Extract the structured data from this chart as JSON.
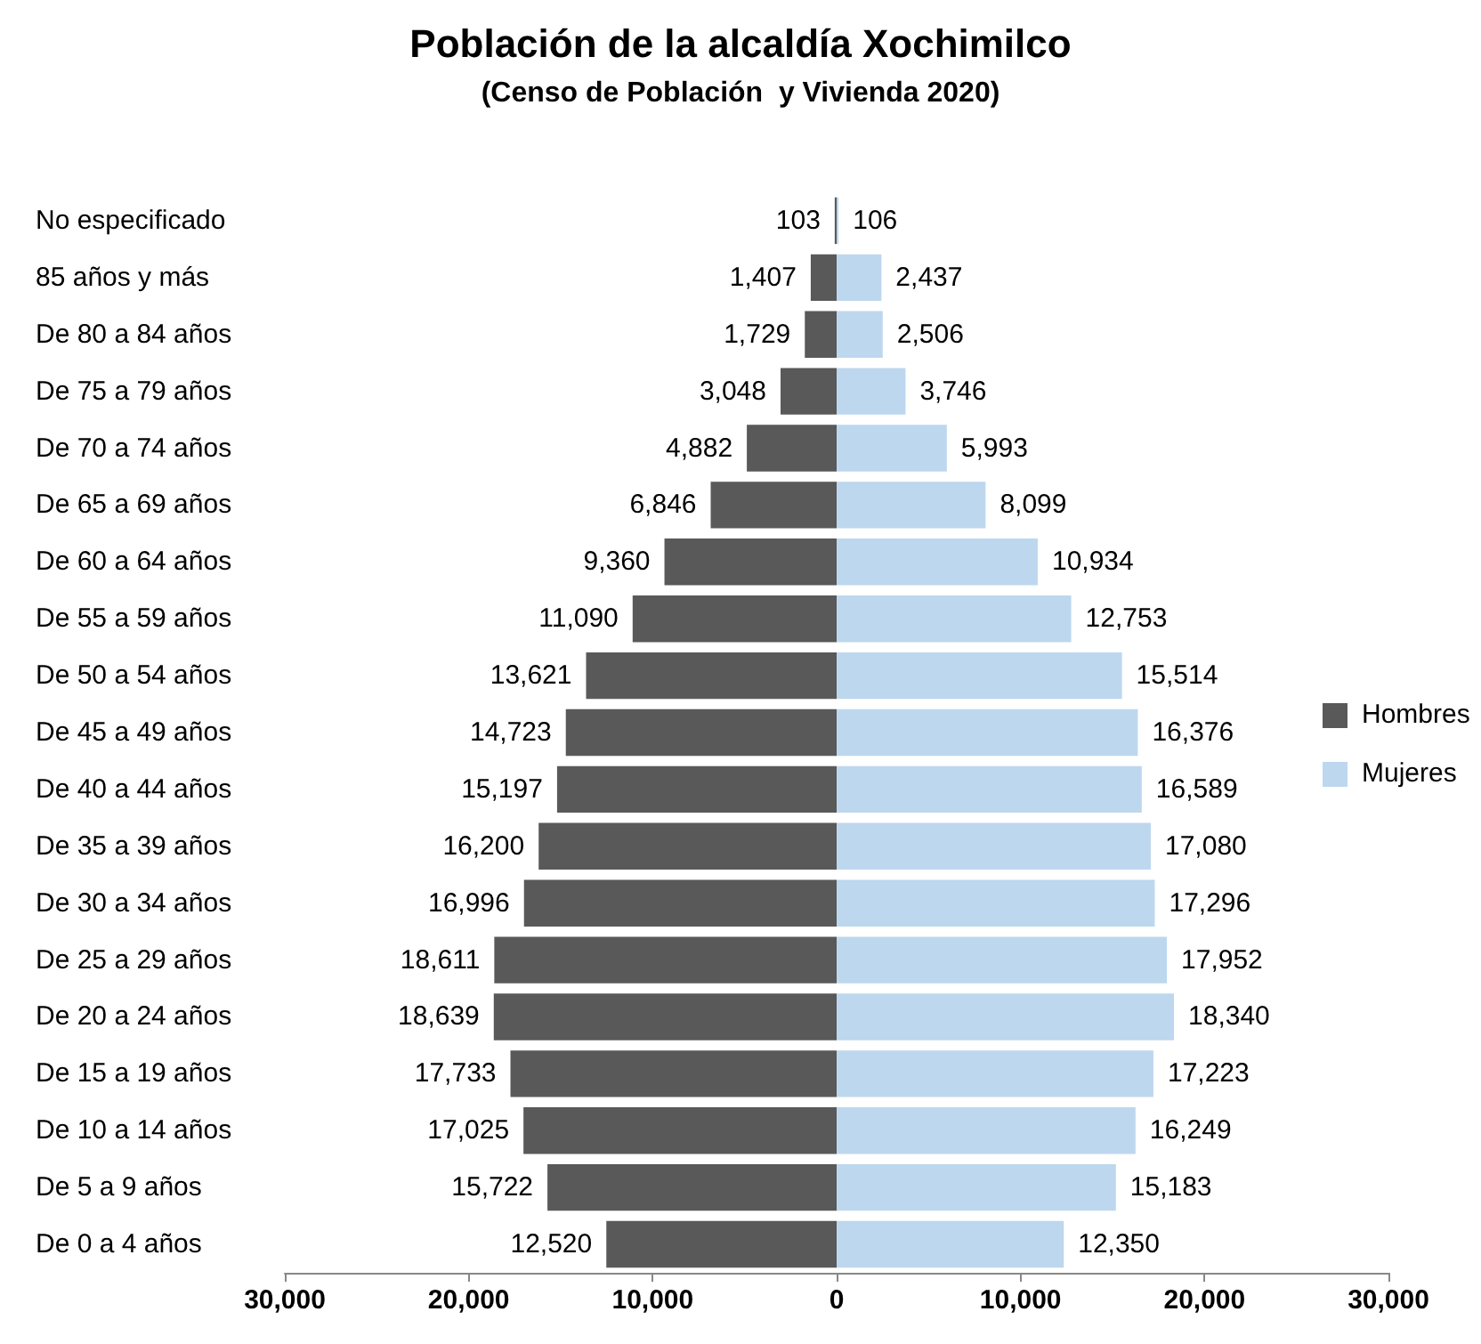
{
  "chart_data": [
    {
      "type": "bar",
      "orientation": "horizontal",
      "title": "Población de la alcaldía Xochimilco",
      "subtitle": "(Censo de Población  y Vivienda 2020)",
      "categories": [
        "No especificado",
        "85 años y más",
        "De 80 a 84 años",
        "De 75 a 79 años",
        "De 70 a 74 años",
        "De 65 a 69 años",
        "De 60 a 64 años",
        "De 55 a 59 años",
        "De 50 a 54 años",
        "De 45 a 49 años",
        "De 40 a 44 años",
        "De 35 a 39 años",
        "De 30 a 34 años",
        "De 25 a 29 años",
        "De 20 a 24 años",
        "De 15 a 19 años",
        "De 10 a 14 años",
        "De 5 a 9 años",
        "De 0 a 4 años"
      ],
      "series": [
        {
          "name": "Hombres",
          "color": "#595959",
          "values": [
            103,
            1407,
            1729,
            3048,
            4882,
            6846,
            9360,
            11090,
            13621,
            14723,
            15197,
            16200,
            16996,
            18611,
            18639,
            17733,
            17025,
            15722,
            12520
          ],
          "value_labels": [
            "103",
            "1,407",
            "1,729",
            "3,048",
            "4,882",
            "6,846",
            "9,360",
            "11,090",
            "13,621",
            "14,723",
            "15,197",
            "16,200",
            "16,996",
            "18,611",
            "18,639",
            "17,733",
            "17,025",
            "15,722",
            "12,520"
          ]
        }
      ],
      "xlim": [
        30000,
        0
      ],
      "xticks": [
        {
          "value": 30000,
          "label": "30,000"
        },
        {
          "value": 20000,
          "label": "20,000"
        },
        {
          "value": 10000,
          "label": "10,000"
        },
        {
          "value": 0,
          "label": null
        }
      ],
      "grid": false
    },
    {
      "type": "bar",
      "orientation": "horizontal",
      "categories": [
        null,
        null,
        null,
        null,
        null,
        null,
        null,
        null,
        null,
        null,
        null,
        null,
        null,
        null,
        null,
        null,
        null,
        null,
        null
      ],
      "series": [
        {
          "name": "Mujeres",
          "color": "#bdd7ee",
          "values": [
            106,
            2437,
            2506,
            3746,
            5993,
            8099,
            10934,
            12753,
            15514,
            16376,
            16589,
            17080,
            17296,
            17952,
            18340,
            17223,
            16249,
            15183,
            12350
          ],
          "value_labels": [
            "106",
            "2,437",
            "2,506",
            "3,746",
            "5,993",
            "8,099",
            "10,934",
            "12,753",
            "15,514",
            "16,376",
            "16,589",
            "17,080",
            "17,296",
            "17,952",
            "18,340",
            "17,223",
            "16,249",
            "15,183",
            "12,350"
          ]
        }
      ],
      "xlim": [
        0,
        30000
      ],
      "xticks": [
        0,
        {
          "value": 10000,
          "label": "10,000"
        },
        {
          "value": 20000,
          "label": "20,000"
        },
        {
          "value": 30000,
          "label": "30,000"
        }
      ],
      "tick_labels": "x",
      "grid": false,
      "legend": "right"
    }
  ]
}
